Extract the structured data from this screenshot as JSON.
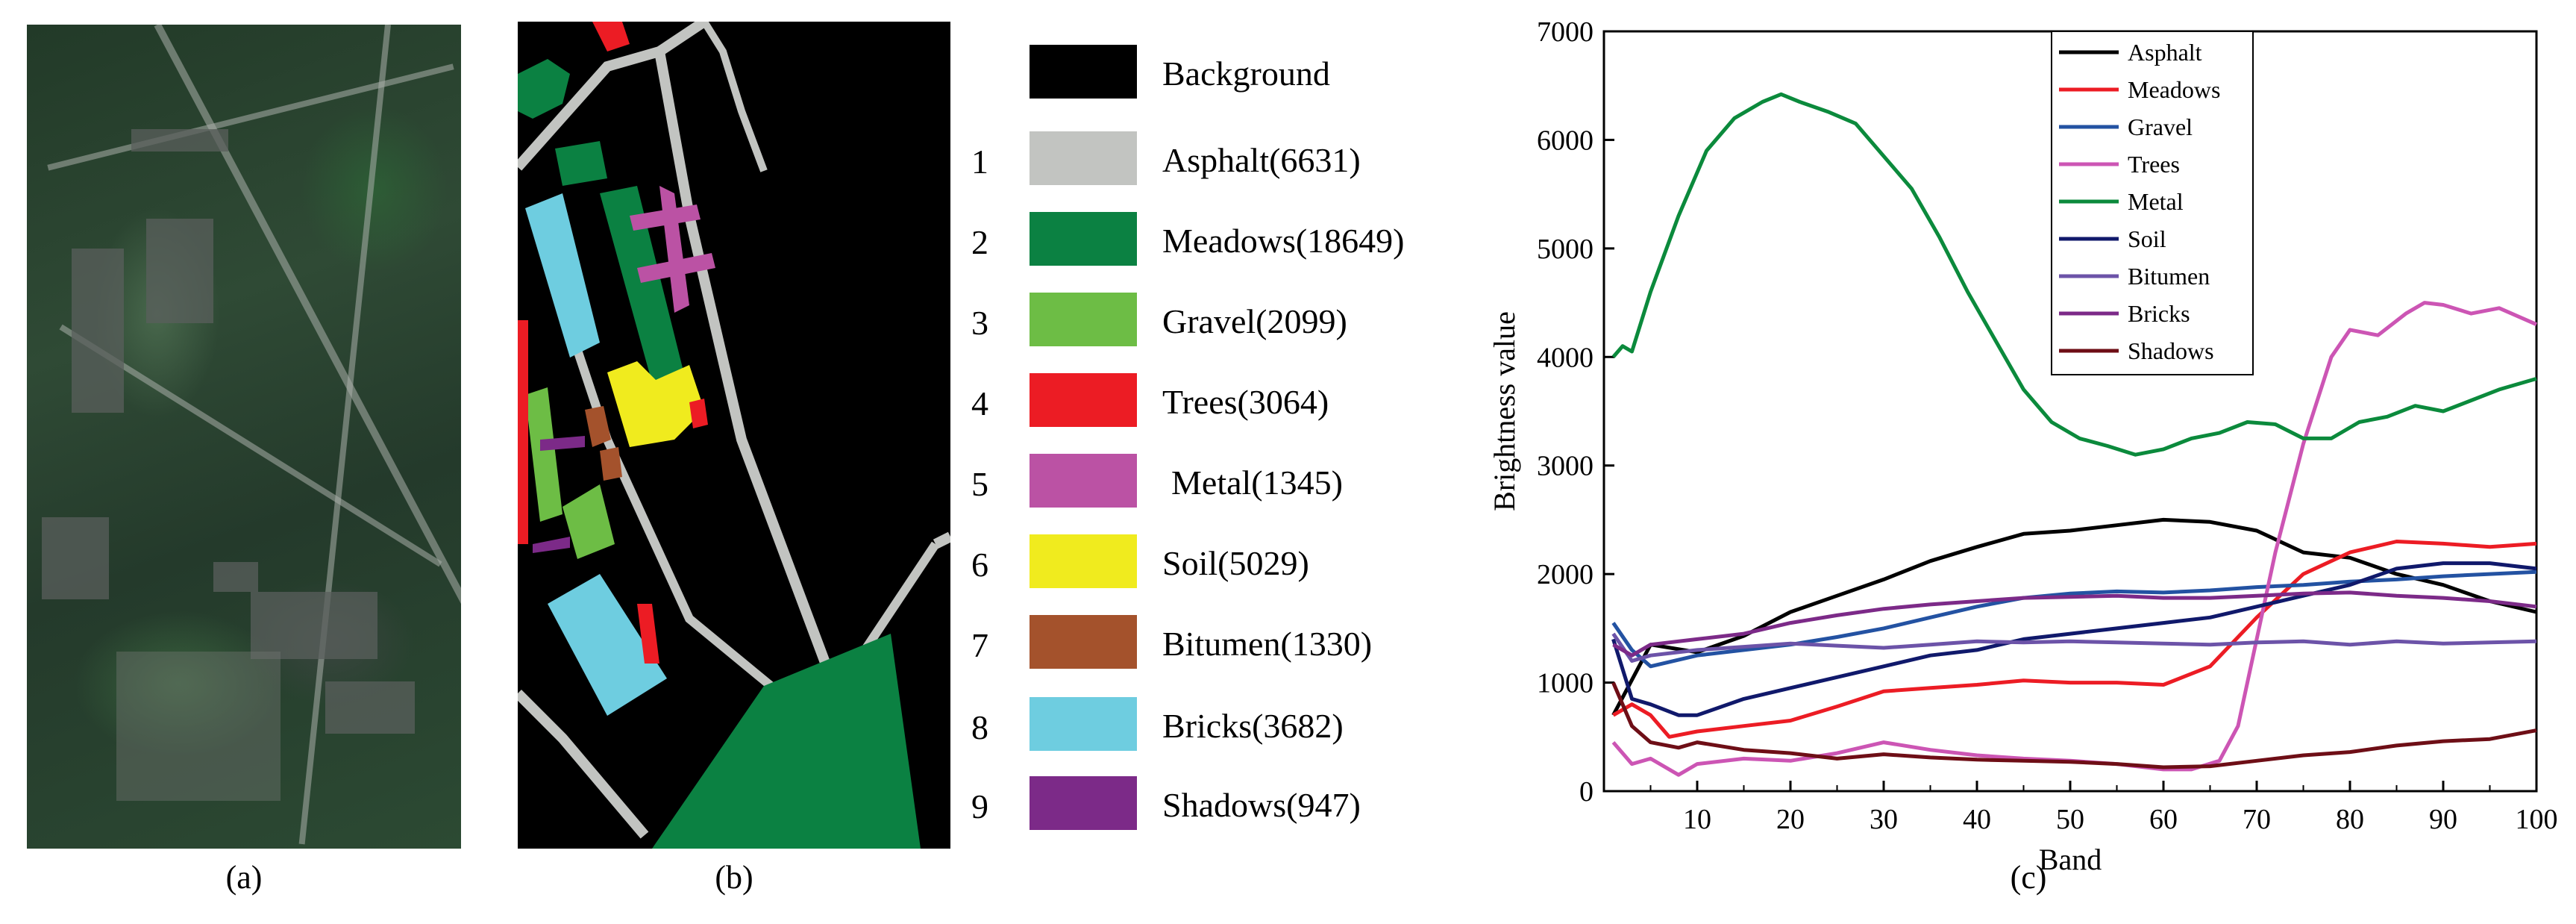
{
  "captions": {
    "a": "(a)",
    "b": "(b)",
    "c": "(c)"
  },
  "legend": [
    {
      "num": "",
      "label": "Background",
      "color": "#000000"
    },
    {
      "num": "1",
      "label": "Asphalt(6631)",
      "color": "#c2c4c1"
    },
    {
      "num": "2",
      "label": "Meadows(18649)",
      "color": "#0b8142"
    },
    {
      "num": "3",
      "label": "Gravel(2099)",
      "color": "#6dbd45"
    },
    {
      "num": "4",
      "label": "Trees(3064)",
      "color": "#ec1c24"
    },
    {
      "num": "5",
      "label": "Metal(1345)",
      "color": "#bb52a4"
    },
    {
      "num": "6",
      "label": "Soil(5029)",
      "color": "#f0eb1e"
    },
    {
      "num": "7",
      "label": "Bitumen(1330)",
      "color": "#a4522c"
    },
    {
      "num": "8",
      "label": "Bricks(3682)",
      "color": "#6ecde0"
    },
    {
      "num": "9",
      "label": "Shadows(947)",
      "color": "#7c2a88"
    }
  ],
  "chart_data": {
    "type": "line",
    "xlabel": "Band",
    "ylabel": "Brightness value",
    "xlim": [
      0,
      100
    ],
    "ylim": [
      0,
      7000
    ],
    "xticks": [
      10,
      20,
      30,
      40,
      50,
      60,
      70,
      80,
      90,
      100
    ],
    "yticks": [
      0,
      1000,
      2000,
      3000,
      4000,
      5000,
      6000,
      7000
    ],
    "legend_position": "top-center",
    "series": [
      {
        "name": "Asphalt",
        "color": "#000000",
        "x": [
          1,
          5,
          10,
          15,
          20,
          25,
          30,
          35,
          40,
          45,
          50,
          55,
          60,
          65,
          70,
          75,
          80,
          85,
          90,
          95,
          100
        ],
        "y": [
          700,
          1350,
          1280,
          1430,
          1650,
          1800,
          1950,
          2120,
          2250,
          2370,
          2400,
          2450,
          2500,
          2480,
          2400,
          2200,
          2150,
          2000,
          1900,
          1750,
          1650
        ]
      },
      {
        "name": "Meadows",
        "color": "#ec1c24",
        "x": [
          1,
          3,
          5,
          7,
          10,
          15,
          20,
          25,
          30,
          35,
          40,
          45,
          50,
          55,
          60,
          65,
          70,
          75,
          80,
          85,
          90,
          95,
          100
        ],
        "y": [
          700,
          800,
          700,
          500,
          550,
          600,
          650,
          780,
          920,
          950,
          980,
          1020,
          1000,
          1000,
          980,
          1150,
          1600,
          2000,
          2200,
          2300,
          2280,
          2250,
          2280
        ]
      },
      {
        "name": "Gravel",
        "color": "#2352a2",
        "x": [
          1,
          3,
          5,
          10,
          15,
          20,
          25,
          30,
          35,
          40,
          45,
          50,
          55,
          60,
          65,
          70,
          75,
          80,
          85,
          90,
          95,
          100
        ],
        "y": [
          1550,
          1300,
          1150,
          1250,
          1300,
          1350,
          1420,
          1500,
          1600,
          1700,
          1780,
          1820,
          1840,
          1830,
          1850,
          1880,
          1900,
          1930,
          1950,
          1980,
          2000,
          2020
        ]
      },
      {
        "name": "Trees",
        "color": "#cc55b4",
        "x": [
          1,
          3,
          5,
          8,
          10,
          15,
          20,
          25,
          30,
          35,
          40,
          45,
          50,
          55,
          60,
          63,
          66,
          68,
          70,
          72,
          75,
          78,
          80,
          83,
          86,
          88,
          90,
          93,
          96,
          100
        ],
        "y": [
          450,
          250,
          300,
          150,
          250,
          300,
          280,
          350,
          450,
          380,
          330,
          300,
          280,
          250,
          200,
          200,
          280,
          600,
          1400,
          2200,
          3200,
          4000,
          4250,
          4200,
          4400,
          4500,
          4480,
          4400,
          4450,
          4300
        ]
      },
      {
        "name": "Metal",
        "color": "#0b8a3c",
        "x": [
          1,
          2,
          3,
          5,
          8,
          11,
          14,
          17,
          19,
          21,
          24,
          27,
          30,
          33,
          36,
          39,
          42,
          45,
          48,
          51,
          54,
          57,
          60,
          63,
          66,
          69,
          72,
          75,
          78,
          81,
          84,
          87,
          90,
          93,
          96,
          100
        ],
        "y": [
          4000,
          4100,
          4050,
          4600,
          5300,
          5900,
          6200,
          6350,
          6420,
          6350,
          6260,
          6150,
          5850,
          5550,
          5100,
          4600,
          4150,
          3700,
          3400,
          3250,
          3180,
          3100,
          3150,
          3250,
          3300,
          3400,
          3380,
          3250,
          3250,
          3400,
          3450,
          3550,
          3500,
          3600,
          3700,
          3800
        ]
      },
      {
        "name": "Soil",
        "color": "#10196b",
        "x": [
          1,
          3,
          5,
          8,
          10,
          15,
          20,
          25,
          30,
          35,
          40,
          45,
          50,
          55,
          60,
          65,
          70,
          75,
          80,
          85,
          90,
          95,
          100
        ],
        "y": [
          1400,
          850,
          800,
          700,
          700,
          850,
          950,
          1050,
          1150,
          1250,
          1300,
          1400,
          1450,
          1500,
          1550,
          1600,
          1700,
          1800,
          1900,
          2050,
          2100,
          2100,
          2050
        ]
      },
      {
        "name": "Bitumen",
        "color": "#6c53a8",
        "x": [
          1,
          3,
          5,
          10,
          15,
          20,
          25,
          30,
          35,
          40,
          45,
          50,
          55,
          60,
          65,
          70,
          75,
          80,
          85,
          90,
          95,
          100
        ],
        "y": [
          1450,
          1200,
          1250,
          1300,
          1330,
          1360,
          1340,
          1320,
          1350,
          1380,
          1370,
          1380,
          1370,
          1360,
          1350,
          1370,
          1380,
          1350,
          1380,
          1360,
          1370,
          1380
        ]
      },
      {
        "name": "Bricks",
        "color": "#7c2a88",
        "x": [
          1,
          3,
          5,
          10,
          15,
          20,
          25,
          30,
          35,
          40,
          45,
          50,
          55,
          60,
          65,
          70,
          75,
          80,
          85,
          90,
          95,
          100
        ],
        "y": [
          1350,
          1250,
          1350,
          1400,
          1450,
          1550,
          1620,
          1680,
          1720,
          1750,
          1780,
          1790,
          1800,
          1780,
          1780,
          1800,
          1820,
          1830,
          1800,
          1780,
          1750,
          1700
        ]
      },
      {
        "name": "Shadows",
        "color": "#6e0e16",
        "x": [
          1,
          3,
          5,
          8,
          10,
          15,
          20,
          25,
          30,
          35,
          40,
          45,
          50,
          55,
          60,
          65,
          70,
          75,
          80,
          85,
          90,
          95,
          100
        ],
        "y": [
          1000,
          600,
          450,
          400,
          450,
          380,
          350,
          300,
          340,
          310,
          290,
          280,
          270,
          250,
          220,
          230,
          280,
          330,
          360,
          420,
          460,
          480,
          560
        ]
      }
    ]
  }
}
